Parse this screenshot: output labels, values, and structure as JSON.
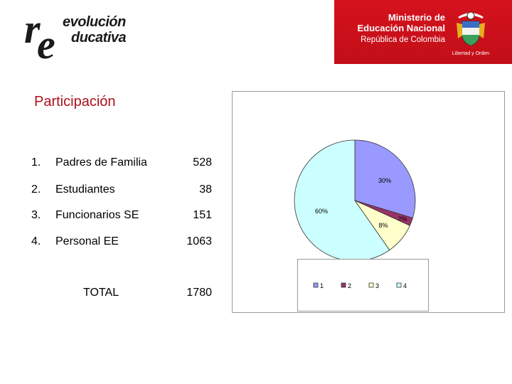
{
  "header": {
    "logo": "revolución educativa",
    "ministry_line1": "Ministerio de",
    "ministry_line2": "Educación Nacional",
    "ministry_line3": "República de Colombia",
    "motto": "Libertad y Orden",
    "colors": {
      "band": "#c8101a",
      "logo_text": "#1a1a1a"
    }
  },
  "title": "Participación",
  "items": [
    {
      "number": "1.",
      "label": "Padres de Familia",
      "value": "528"
    },
    {
      "number": "2.",
      "label": "Estudiantes",
      "value": "38"
    },
    {
      "number": "3.",
      "label": "Funcionarios SE",
      "value": "151"
    },
    {
      "number": "4.",
      "label": "Personal EE",
      "value": "1063"
    }
  ],
  "total": {
    "label": "TOTAL",
    "value": "1780"
  },
  "chart_data": {
    "type": "pie",
    "categories": [
      "1",
      "2",
      "3",
      "4"
    ],
    "values": [
      528,
      38,
      151,
      1063
    ],
    "labels": [
      "30%",
      "2%",
      "8%",
      "60%"
    ],
    "colors": [
      "#9999ff",
      "#993366",
      "#ffffcc",
      "#ccffff"
    ],
    "legend": "bottom"
  }
}
